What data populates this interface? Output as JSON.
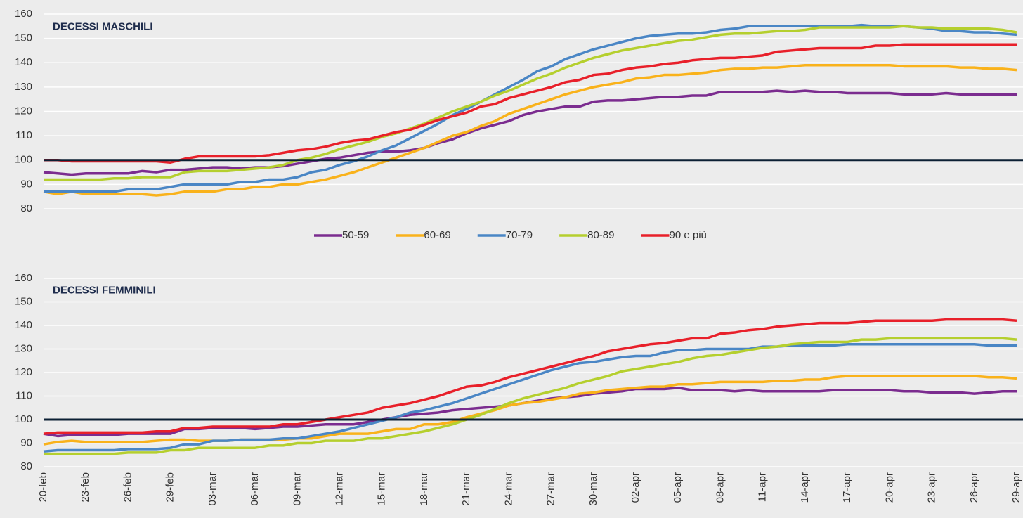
{
  "chart_data": [
    {
      "type": "line",
      "title": "DECESSI MASCHILI",
      "ylim": [
        80,
        160
      ],
      "yticks": [
        80,
        90,
        100,
        110,
        120,
        130,
        140,
        150,
        160
      ],
      "grid": true,
      "hline": 100,
      "legend": "bottom",
      "series": [
        {
          "name": "50-59",
          "color": "#7b2c8f",
          "values": [
            95,
            94.5,
            94,
            94.5,
            94.5,
            94.5,
            94.5,
            95.5,
            95,
            96,
            96,
            96.5,
            97,
            97,
            96.5,
            97,
            97,
            97.5,
            98.5,
            99.5,
            100.5,
            101,
            102,
            103,
            103.5,
            103.5,
            104,
            105,
            107,
            108.5,
            111,
            113,
            114.5,
            116,
            118.5,
            120,
            121,
            122,
            122,
            124,
            124.5,
            124.5,
            125,
            125.5,
            126,
            126,
            126.5,
            126.5,
            128,
            128,
            128,
            128,
            128.5,
            128,
            128.5,
            128,
            128,
            127.5,
            127.5,
            127.5,
            127.5,
            127,
            127,
            127,
            127.5,
            127,
            127,
            127,
            127,
            127
          ]
        },
        {
          "name": "60-69",
          "color": "#f9b21b",
          "values": [
            87,
            86,
            87,
            86,
            86,
            86,
            86,
            86,
            85.5,
            86,
            87,
            87,
            87,
            88,
            88,
            89,
            89,
            90,
            90,
            91,
            92,
            93.5,
            95,
            97,
            99,
            101,
            103,
            105,
            107.5,
            110,
            111.5,
            114,
            116,
            119,
            121,
            123,
            125,
            127,
            128.5,
            130,
            131,
            132,
            133.5,
            134,
            135,
            135,
            135.5,
            136,
            137,
            137.5,
            137.5,
            138,
            138,
            138.5,
            139,
            139,
            139,
            139,
            139,
            139,
            139,
            138.5,
            138.5,
            138.5,
            138.5,
            138,
            138,
            137.5,
            137.5,
            137
          ]
        },
        {
          "name": "70-79",
          "color": "#4a86c5",
          "values": [
            87,
            87,
            87,
            87,
            87,
            87,
            88,
            88,
            88,
            89,
            90,
            90,
            90,
            90,
            91,
            91,
            92,
            92,
            93,
            95,
            96,
            98,
            99.5,
            101.5,
            104,
            106,
            109,
            112,
            115,
            118.5,
            121,
            124,
            127,
            130,
            133,
            136.5,
            138.5,
            141.5,
            143.5,
            145.5,
            147,
            148.5,
            150,
            151,
            151.5,
            152,
            152,
            152.5,
            153.5,
            154,
            155,
            155,
            155,
            155,
            155,
            155,
            155,
            155,
            155.5,
            155,
            155,
            155,
            154.5,
            154,
            153,
            153,
            152.5,
            152.5,
            152,
            151.5
          ]
        },
        {
          "name": "80-89",
          "color": "#b5cf2e",
          "values": [
            92,
            92,
            92,
            92,
            92,
            92.5,
            92.5,
            93,
            93,
            93,
            95,
            95.5,
            95.5,
            95.5,
            96,
            96.5,
            97,
            98,
            100,
            101,
            102.5,
            104.5,
            106,
            107.5,
            109.5,
            111,
            113,
            115,
            117.5,
            120,
            122,
            124,
            126.5,
            128.5,
            131,
            133.5,
            135.5,
            138,
            140,
            142,
            143.5,
            145,
            146,
            147,
            148,
            149,
            149.5,
            150.5,
            151.5,
            152,
            152,
            152.5,
            153,
            153,
            153.5,
            154.5,
            154.5,
            154.5,
            154.5,
            154.5,
            154.5,
            155,
            154.5,
            154.5,
            154,
            154,
            154,
            154,
            153.5,
            152.5
          ]
        },
        {
          "name": "90 e più",
          "color": "#e8202a",
          "values": [
            100,
            100,
            99.5,
            99.5,
            99.5,
            99.5,
            99.5,
            99.5,
            99.5,
            99,
            100.5,
            101.5,
            101.5,
            101.5,
            101.5,
            101.5,
            102,
            103,
            104,
            104.5,
            105.5,
            107,
            108,
            108.5,
            110,
            111.5,
            112.5,
            114.5,
            116.5,
            118,
            119.5,
            122,
            123,
            125.5,
            127,
            128.5,
            130,
            132,
            133,
            135,
            135.5,
            137,
            138,
            138.5,
            139.5,
            140,
            141,
            141.5,
            142,
            142,
            142.5,
            143,
            144.5,
            145,
            145.5,
            146,
            146,
            146,
            146,
            147,
            147,
            147.5,
            147.5,
            147.5,
            147.5,
            147.5,
            147.5,
            147.5,
            147.5,
            147.5
          ]
        }
      ]
    },
    {
      "type": "line",
      "title": "DECESSI FEMMINILI",
      "ylim": [
        80,
        160
      ],
      "yticks": [
        80,
        90,
        100,
        110,
        120,
        130,
        140,
        150,
        160
      ],
      "grid": true,
      "hline": 100,
      "categories": [
        "20-feb",
        null,
        null,
        "23-feb",
        null,
        null,
        "26-feb",
        null,
        null,
        "29-feb",
        null,
        null,
        "03-mar",
        null,
        null,
        "06-mar",
        null,
        null,
        "09-mar",
        null,
        null,
        "12-mar",
        null,
        null,
        "15-mar",
        null,
        null,
        "18-mar",
        null,
        null,
        "21-mar",
        null,
        null,
        "24-mar",
        null,
        null,
        "27-mar",
        null,
        null,
        "30-mar",
        null,
        null,
        "02-apr",
        null,
        null,
        "05-apr",
        null,
        null,
        "08-apr",
        null,
        null,
        "11-apr",
        null,
        null,
        "14-apr",
        null,
        null,
        "17-apr",
        null,
        null,
        "20-apr",
        null,
        null,
        "23-apr",
        null,
        null,
        "26-apr",
        null,
        null,
        "29-apr"
      ],
      "series": [
        {
          "name": "50-59",
          "color": "#7b2c8f",
          "values": [
            94,
            93,
            93.5,
            93.5,
            93.5,
            93.5,
            94,
            94,
            94,
            94,
            96,
            96,
            96.5,
            96.5,
            96.5,
            96,
            96.5,
            97,
            97,
            97.5,
            98,
            98,
            98,
            99,
            100,
            101,
            102,
            102.5,
            103,
            104,
            104.5,
            105,
            105.5,
            106,
            107,
            108,
            109,
            109.5,
            110,
            111,
            111.5,
            112,
            113,
            113,
            113,
            113.5,
            112.5,
            112.5,
            112.5,
            112,
            112.5,
            112,
            112,
            112,
            112,
            112,
            112.5,
            112.5,
            112.5,
            112.5,
            112.5,
            112,
            112,
            111.5,
            111.5,
            111.5,
            111,
            111.5,
            112,
            112
          ]
        },
        {
          "name": "60-69",
          "color": "#f9b21b",
          "values": [
            89.5,
            90.5,
            91,
            90.5,
            90.5,
            90.5,
            90.5,
            90.5,
            91,
            91.5,
            91.5,
            91,
            91,
            91,
            91.5,
            91.5,
            91.5,
            91.5,
            92,
            92,
            93,
            94,
            94,
            94,
            95,
            96,
            96,
            98,
            98,
            99,
            101,
            102.5,
            104,
            106,
            107,
            107.5,
            108.5,
            109.5,
            111,
            111.5,
            112.5,
            113,
            113.5,
            114,
            114,
            115,
            115,
            115.5,
            116,
            116,
            116,
            116,
            116.5,
            116.5,
            117,
            117,
            118,
            118.5,
            118.5,
            118.5,
            118.5,
            118.5,
            118.5,
            118.5,
            118.5,
            118.5,
            118.5,
            118,
            118,
            117.5
          ]
        },
        {
          "name": "70-79",
          "color": "#4a86c5",
          "values": [
            86.5,
            87,
            87,
            87,
            87,
            87,
            87.5,
            87.5,
            87.5,
            88,
            89.5,
            89.5,
            91,
            91,
            91.5,
            91.5,
            91.5,
            92,
            92,
            93,
            94,
            95,
            96.5,
            98,
            99.5,
            101,
            103,
            104,
            105.5,
            107,
            109,
            111,
            113,
            115,
            117,
            119,
            121,
            122.5,
            124,
            124.5,
            125.5,
            126.5,
            127,
            127,
            128.5,
            129.5,
            129.5,
            130,
            130,
            130,
            130,
            131,
            131,
            131.5,
            131.5,
            131.5,
            131.5,
            132,
            132,
            132,
            132,
            132,
            132,
            132,
            132,
            132,
            132,
            131.5,
            131.5,
            131.5
          ]
        },
        {
          "name": "80-89",
          "color": "#b5cf2e",
          "values": [
            85.5,
            85.5,
            85.5,
            85.5,
            85.5,
            85.5,
            86,
            86,
            86,
            87,
            87,
            88,
            88,
            88,
            88,
            88,
            89,
            89,
            90,
            90,
            91,
            91,
            91,
            92,
            92,
            93,
            94,
            95,
            96.5,
            98,
            100,
            102,
            104.5,
            107,
            109,
            110.5,
            112,
            113.5,
            115.5,
            117,
            118.5,
            120.5,
            121.5,
            122.5,
            123.5,
            124.5,
            126,
            127,
            127.5,
            128.5,
            129.5,
            130.5,
            131,
            132,
            132.5,
            133,
            133,
            133,
            134,
            134,
            134.5,
            134.5,
            134.5,
            134.5,
            134.5,
            134.5,
            134.5,
            134.5,
            134.5,
            134
          ]
        },
        {
          "name": "90 e più",
          "color": "#e8202a",
          "values": [
            94,
            94.5,
            94.5,
            94.5,
            94.5,
            94.5,
            94.5,
            94.5,
            95,
            95,
            96.5,
            96.5,
            97,
            97,
            97,
            97,
            97,
            98,
            98,
            99,
            100,
            101,
            102,
            103,
            105,
            106,
            107,
            108.5,
            110,
            112,
            114,
            114.5,
            116,
            118,
            119.5,
            121,
            122.5,
            124,
            125.5,
            127,
            129,
            130,
            131,
            132,
            132.5,
            133.5,
            134.5,
            134.5,
            136.5,
            137,
            138,
            138.5,
            139.5,
            140,
            140.5,
            141,
            141,
            141,
            141.5,
            142,
            142,
            142,
            142,
            142,
            142.5,
            142.5,
            142.5,
            142.5,
            142.5,
            142
          ]
        }
      ]
    }
  ]
}
